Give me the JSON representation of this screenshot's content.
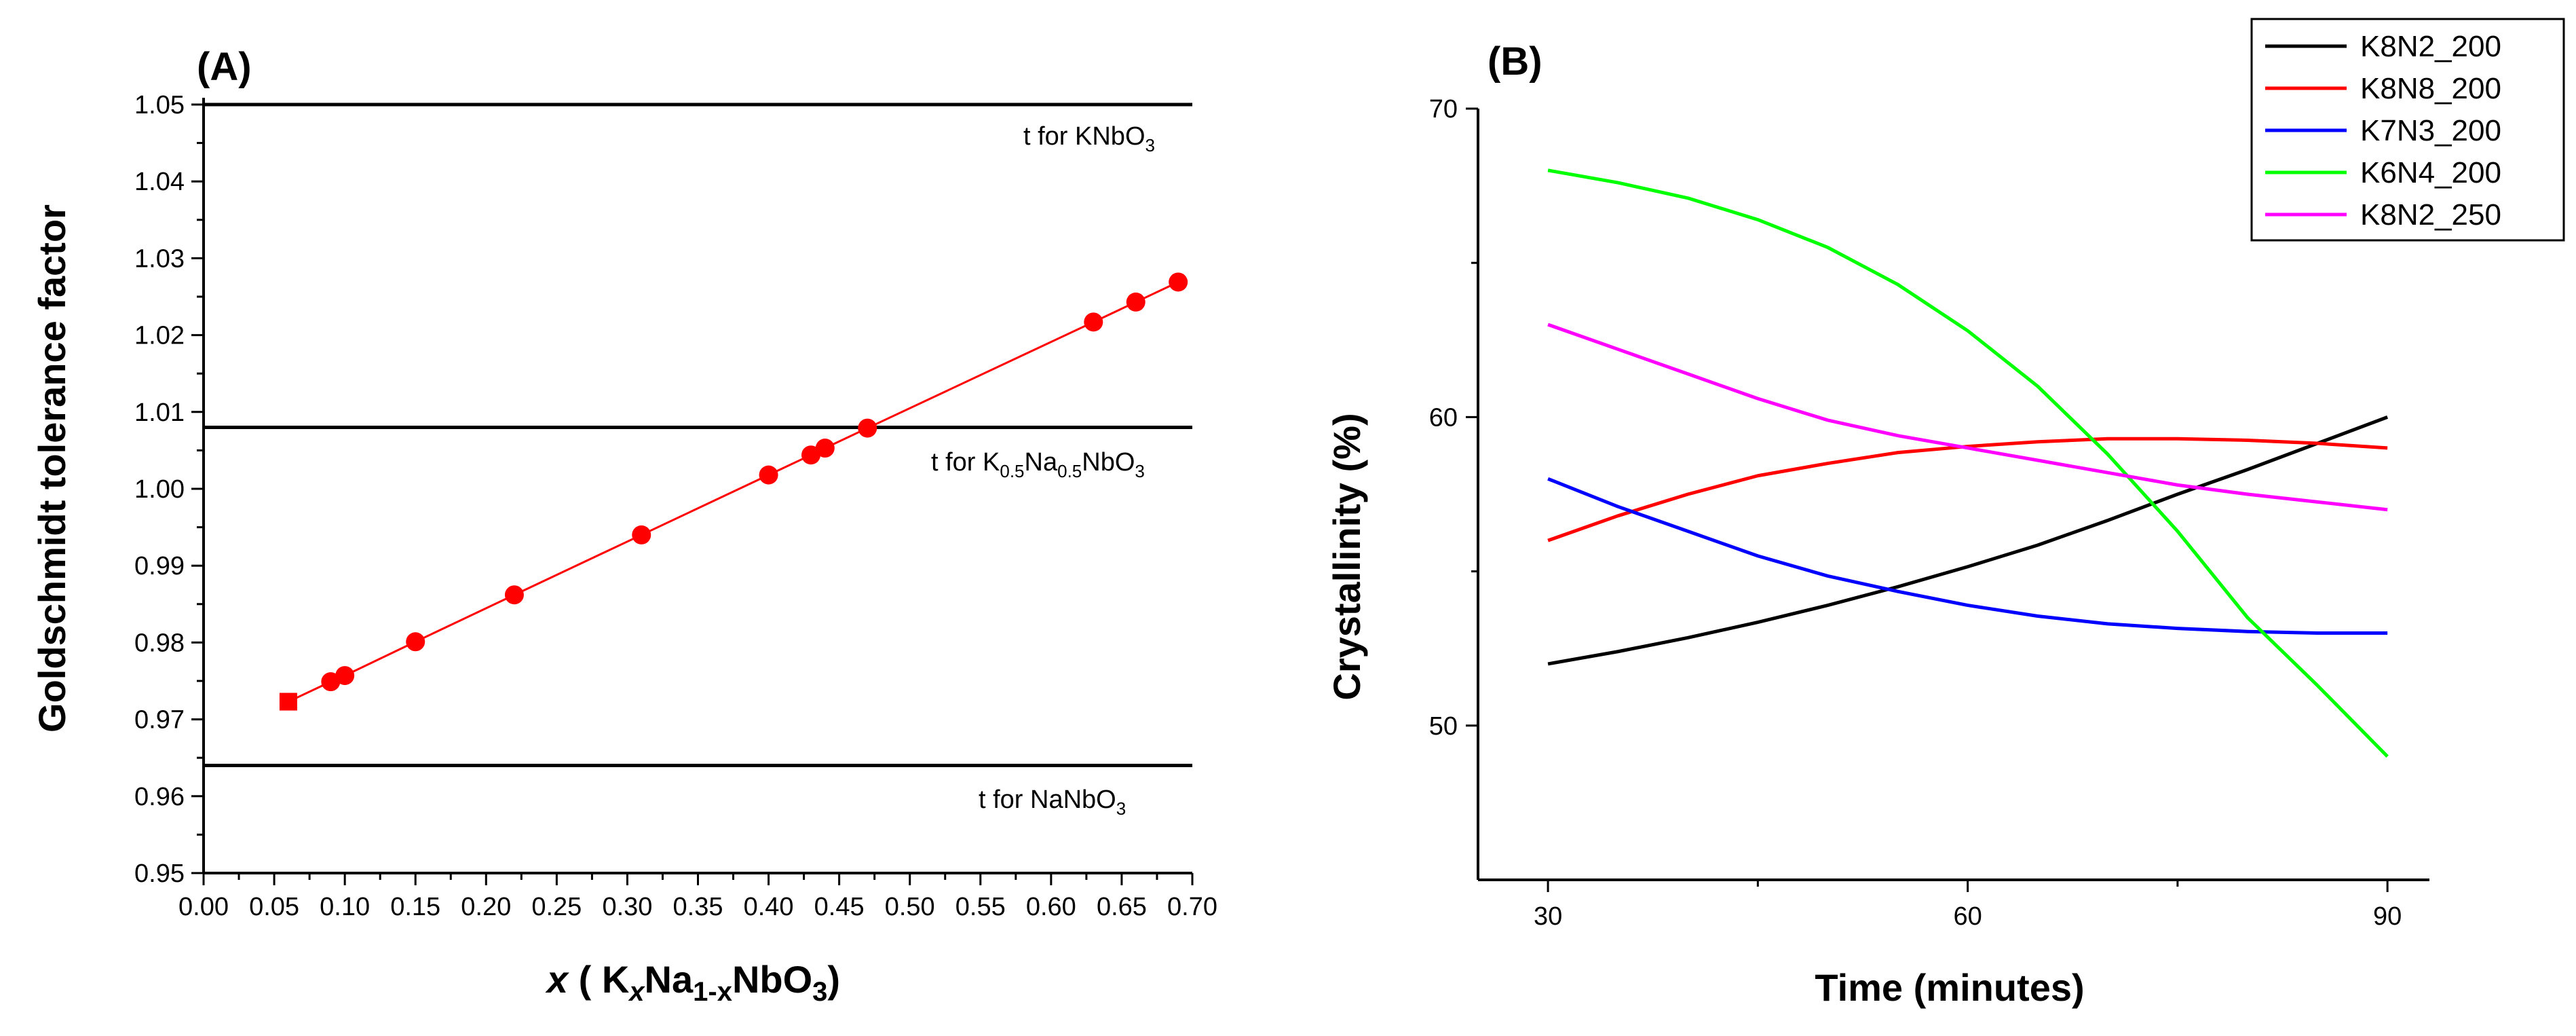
{
  "chart_data": [
    {
      "panel": "(A)",
      "type": "scatter",
      "ylabel": "Goldschmidt tolerance factor",
      "xlabel": {
        "x": "x",
        "K": "K",
        "sub1": "x",
        "Na": "Na",
        "sub2": "1-x",
        "tail": "NbO",
        "sub3": "3",
        "open": "( ",
        "close": ")"
      },
      "xlim": [
        0.0,
        0.7
      ],
      "ylim": [
        0.95,
        1.05
      ],
      "xticks": [
        "0.00",
        "0.05",
        "0.10",
        "0.15",
        "0.20",
        "0.25",
        "0.30",
        "0.35",
        "0.40",
        "0.45",
        "0.50",
        "0.55",
        "0.60",
        "0.65",
        "0.70"
      ],
      "yticks": [
        "0.95",
        "0.96",
        "0.97",
        "0.98",
        "0.99",
        "1.00",
        "1.01",
        "1.02",
        "1.03",
        "1.04",
        "1.05"
      ],
      "series": [
        {
          "name": "tolerance factor",
          "color": "#ff0000",
          "x": [
            0.06,
            0.09,
            0.1,
            0.15,
            0.22,
            0.31,
            0.4,
            0.43,
            0.44,
            0.47,
            0.63,
            0.66,
            0.69
          ],
          "y": [
            0.9723,
            0.9749,
            0.9757,
            0.9801,
            0.9862,
            0.994,
            1.0018,
            1.0044,
            1.0053,
            1.0079,
            1.0217,
            1.0243,
            1.0269
          ]
        }
      ],
      "reference_lines": [
        {
          "y": 1.05,
          "label_main": "t for KNbO",
          "sub": "3",
          "label_tail": ""
        },
        {
          "y": 1.008,
          "label_main": "t for K",
          "sub": "0.5",
          "label_mid": "Na",
          "sub2": "0.5",
          "label_tail": "NbO",
          "sub3": "3"
        },
        {
          "y": 0.964,
          "label_main": "t for NaNbO",
          "sub": "3",
          "label_tail": ""
        }
      ]
    },
    {
      "panel": "(B)",
      "type": "line",
      "xlabel": "Time (minutes)",
      "ylabel": "Crystallinity (%)",
      "xlim": [
        25,
        93
      ],
      "ylim": [
        45,
        70
      ],
      "xticks": [
        "30",
        "60",
        "90"
      ],
      "yticks": [
        "50",
        "60",
        "70"
      ],
      "series": [
        {
          "name": "K8N2_200",
          "color": "#000000",
          "x": [
            30,
            35,
            40,
            45,
            50,
            55,
            60,
            65,
            70,
            75,
            80,
            85,
            90
          ],
          "y": [
            52,
            52.4,
            52.85,
            53.35,
            53.9,
            54.5,
            55.15,
            55.85,
            56.65,
            57.5,
            58.3,
            59.15,
            60
          ]
        },
        {
          "name": "K8N8_200",
          "color": "#ff0000",
          "x": [
            30,
            35,
            40,
            45,
            50,
            55,
            60,
            65,
            70,
            75,
            80,
            85,
            90
          ],
          "y": [
            56,
            56.8,
            57.5,
            58.1,
            58.5,
            58.85,
            59.05,
            59.2,
            59.3,
            59.3,
            59.25,
            59.15,
            59
          ]
        },
        {
          "name": "K7N3_200",
          "color": "#0000ff",
          "x": [
            30,
            35,
            40,
            45,
            50,
            55,
            60,
            65,
            70,
            75,
            80,
            85,
            90
          ],
          "y": [
            58,
            57.1,
            56.3,
            55.5,
            54.85,
            54.35,
            53.9,
            53.55,
            53.3,
            53.15,
            53.05,
            53,
            53
          ]
        },
        {
          "name": "K6N4_200",
          "color": "#00ff00",
          "x": [
            30,
            35,
            40,
            45,
            50,
            55,
            60,
            65,
            70,
            75,
            80,
            85,
            90
          ],
          "y": [
            68,
            67.6,
            67.1,
            66.4,
            65.5,
            64.3,
            62.8,
            61,
            58.8,
            56.3,
            53.5,
            51.3,
            49
          ]
        },
        {
          "name": "K8N2_250",
          "color": "#ff00ff",
          "x": [
            30,
            35,
            40,
            45,
            50,
            55,
            60,
            65,
            70,
            75,
            80,
            85,
            90
          ],
          "y": [
            63,
            62.2,
            61.4,
            60.6,
            59.9,
            59.4,
            59,
            58.6,
            58.2,
            57.8,
            57.5,
            57.25,
            57
          ]
        }
      ]
    }
  ]
}
